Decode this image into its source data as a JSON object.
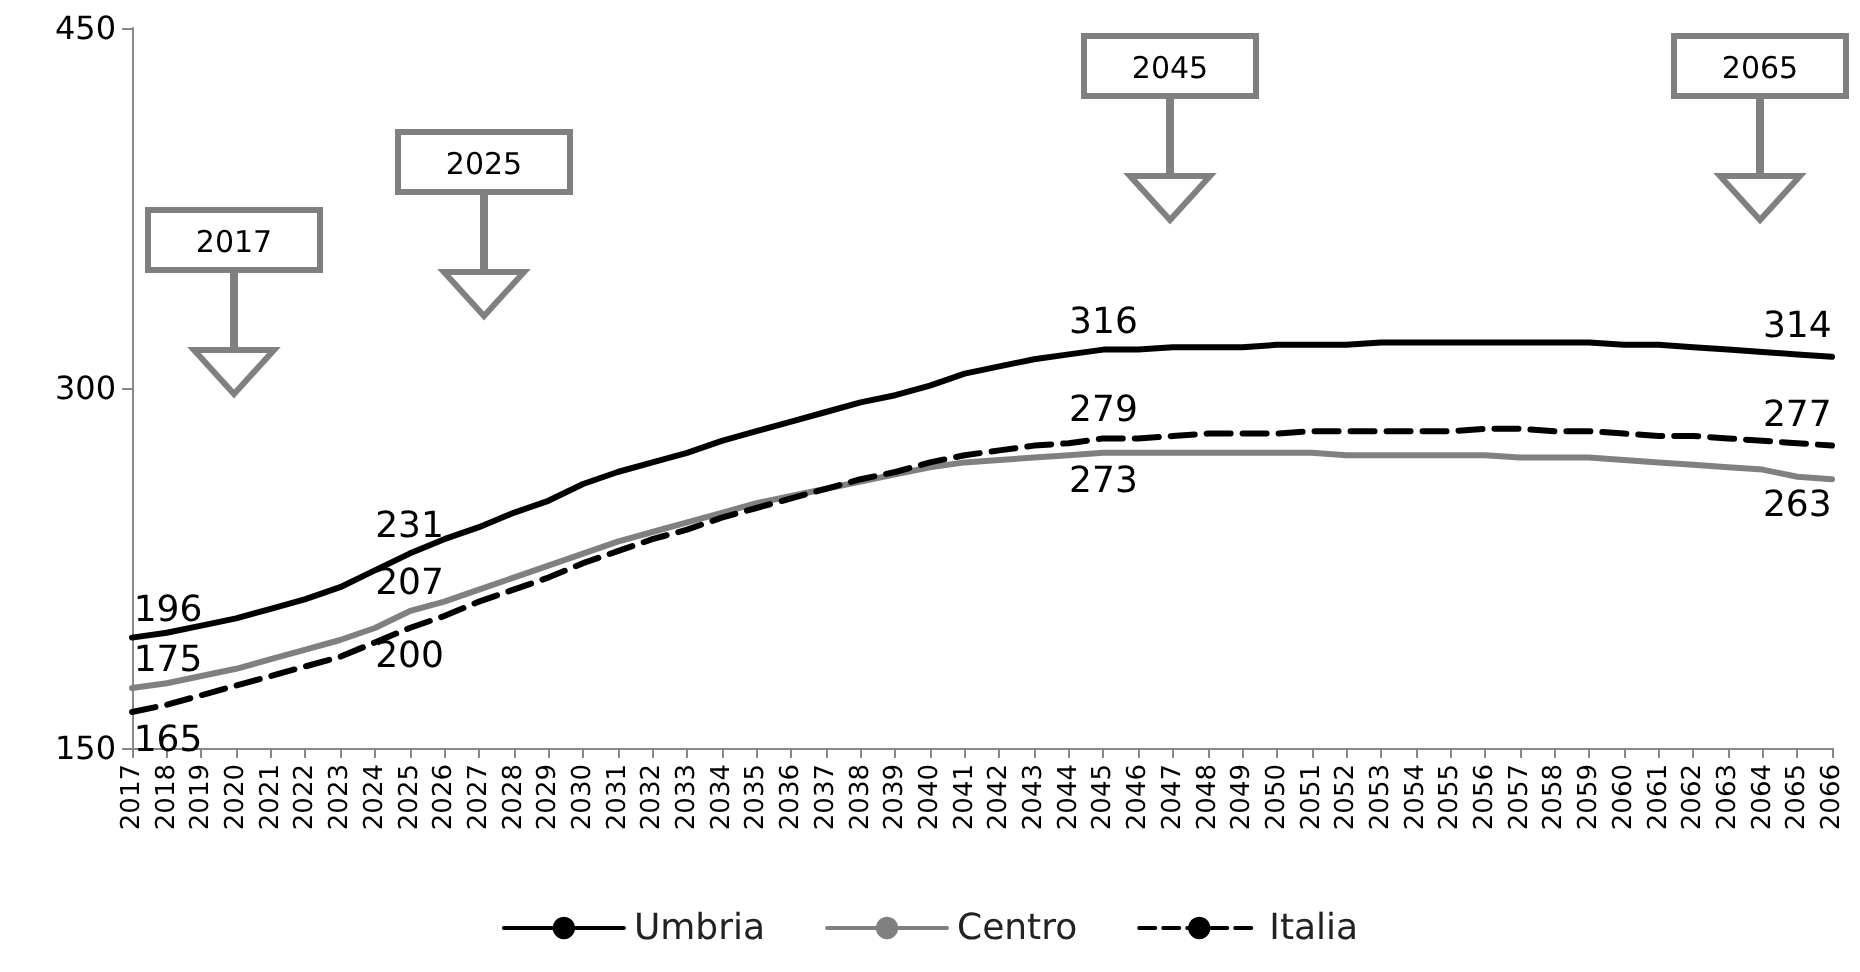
{
  "chart_data": {
    "type": "line",
    "categories": [
      "2017",
      "2018",
      "2019",
      "2020",
      "2021",
      "2022",
      "2023",
      "2024",
      "2025",
      "2026",
      "2027",
      "2028",
      "2029",
      "2030",
      "2031",
      "2032",
      "2033",
      "2034",
      "2035",
      "2036",
      "2037",
      "2038",
      "2039",
      "2040",
      "2041",
      "2042",
      "2043",
      "2044",
      "2045",
      "2046",
      "2047",
      "2048",
      "2049",
      "2050",
      "2051",
      "2052",
      "2053",
      "2054",
      "2055",
      "2056",
      "2057",
      "2058",
      "2059",
      "2060",
      "2061",
      "2062",
      "2063",
      "2064",
      "2065",
      "2066"
    ],
    "series": [
      {
        "name": "Umbria",
        "color": "#000000",
        "line_style": "solid",
        "values": [
          196,
          198,
          201,
          204,
          208,
          212,
          217,
          224,
          231,
          237,
          242,
          248,
          253,
          260,
          265,
          269,
          273,
          278,
          282,
          286,
          290,
          294,
          297,
          301,
          306,
          309,
          312,
          314,
          316,
          316,
          317,
          317,
          317,
          318,
          318,
          318,
          319,
          319,
          319,
          319,
          319,
          319,
          319,
          318,
          318,
          317,
          316,
          315,
          314,
          313
        ],
        "value_labels": [
          "196",
          null,
          null,
          null,
          null,
          null,
          null,
          null,
          "231",
          null,
          null,
          null,
          null,
          null,
          null,
          null,
          null,
          null,
          null,
          null,
          null,
          null,
          null,
          null,
          null,
          null,
          null,
          null,
          "316",
          null,
          null,
          null,
          null,
          null,
          null,
          null,
          null,
          null,
          null,
          null,
          null,
          null,
          null,
          null,
          null,
          null,
          null,
          null,
          "314",
          null
        ]
      },
      {
        "name": "Centro",
        "color": "#808080",
        "line_style": "solid",
        "values": [
          175,
          177,
          180,
          183,
          187,
          191,
          195,
          200,
          207,
          211,
          216,
          221,
          226,
          231,
          236,
          240,
          244,
          248,
          252,
          255,
          258,
          261,
          264,
          267,
          269,
          270,
          271,
          272,
          273,
          273,
          273,
          273,
          273,
          273,
          273,
          272,
          272,
          272,
          272,
          272,
          271,
          271,
          271,
          270,
          269,
          268,
          267,
          266,
          263,
          262
        ],
        "value_labels": [
          "175",
          null,
          null,
          null,
          null,
          null,
          null,
          null,
          "207",
          null,
          null,
          null,
          null,
          null,
          null,
          null,
          null,
          null,
          null,
          null,
          null,
          null,
          null,
          null,
          null,
          null,
          null,
          null,
          "273",
          null,
          null,
          null,
          null,
          null,
          null,
          null,
          null,
          null,
          null,
          null,
          null,
          null,
          null,
          null,
          null,
          null,
          null,
          null,
          "263",
          null
        ]
      },
      {
        "name": "Italia",
        "color": "#000000",
        "line_style": "dashed",
        "values": [
          165,
          168,
          172,
          176,
          180,
          184,
          188,
          194,
          200,
          205,
          211,
          216,
          221,
          227,
          232,
          237,
          241,
          246,
          250,
          254,
          258,
          262,
          265,
          269,
          272,
          274,
          276,
          277,
          279,
          279,
          280,
          281,
          281,
          281,
          282,
          282,
          282,
          282,
          282,
          283,
          283,
          282,
          282,
          281,
          280,
          280,
          279,
          278,
          277,
          276
        ],
        "value_labels": [
          "165",
          null,
          null,
          null,
          null,
          null,
          null,
          null,
          "200",
          null,
          null,
          null,
          null,
          null,
          null,
          null,
          null,
          null,
          null,
          null,
          null,
          null,
          null,
          null,
          null,
          null,
          null,
          null,
          "279",
          null,
          null,
          null,
          null,
          null,
          null,
          null,
          null,
          null,
          null,
          null,
          null,
          null,
          null,
          null,
          null,
          null,
          null,
          null,
          "277",
          null
        ]
      }
    ],
    "ylim": [
      150,
      450
    ],
    "yticks": [
      150,
      300,
      450
    ],
    "grid": false,
    "legend": "bottom",
    "marker": "none",
    "annotations": [
      "2017",
      "2025",
      "2045",
      "2065"
    ]
  }
}
